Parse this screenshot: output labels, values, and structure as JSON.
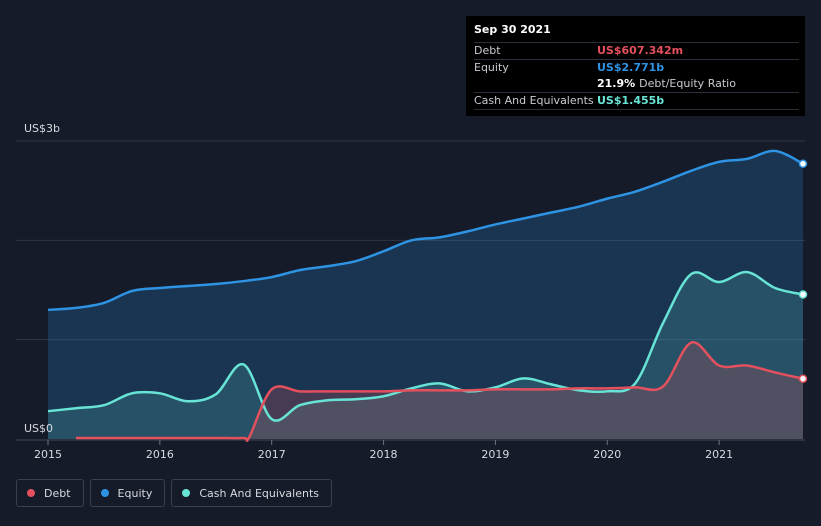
{
  "tooltip": {
    "date": "Sep 30 2021",
    "debt_label": "Debt",
    "debt_value": "US$607.342m",
    "equity_label": "Equity",
    "equity_value": "US$2.771b",
    "ratio_value": "21.9%",
    "ratio_label": "Debt/Equity Ratio",
    "cash_label": "Cash And Equivalents",
    "cash_value": "US$1.455b"
  },
  "legend": [
    {
      "label": "Debt",
      "color": "#e4505d"
    },
    {
      "label": "Equity",
      "color": "#2e93e3"
    },
    {
      "label": "Cash And Equivalents",
      "color": "#68e4d6"
    }
  ],
  "chart_data": {
    "type": "area",
    "y_top_label": "US$3b",
    "y_bottom_label": "US$0",
    "ylim": [
      0,
      3.0
    ],
    "xlim": [
      2015.0,
      2021.75
    ],
    "x_ticks": [
      2015,
      2016,
      2017,
      2018,
      2019,
      2020,
      2021
    ],
    "grid": true,
    "series": [
      {
        "name": "Debt",
        "color": "#e4505d",
        "x": [
          2015.25,
          2015.5,
          2015.75,
          2016.0,
          2016.25,
          2016.5,
          2016.75,
          2016.8,
          2017.0,
          2017.25,
          2017.5,
          2017.75,
          2018.0,
          2018.25,
          2018.5,
          2018.75,
          2019.0,
          2019.25,
          2019.5,
          2019.75,
          2020.0,
          2020.25,
          2020.5,
          2020.75,
          2021.0,
          2021.25,
          2021.5,
          2021.75
        ],
        "y": [
          0.01,
          0.01,
          0.01,
          0.01,
          0.01,
          0.01,
          0.01,
          0.02,
          0.5,
          0.48,
          0.48,
          0.48,
          0.48,
          0.49,
          0.49,
          0.49,
          0.5,
          0.5,
          0.5,
          0.51,
          0.51,
          0.52,
          0.53,
          0.97,
          0.74,
          0.74,
          0.67,
          0.607
        ]
      },
      {
        "name": "Equity",
        "color": "#2e93e3",
        "x": [
          2015.0,
          2015.25,
          2015.5,
          2015.75,
          2016.0,
          2016.25,
          2016.5,
          2016.75,
          2017.0,
          2017.25,
          2017.5,
          2017.75,
          2018.0,
          2018.25,
          2018.5,
          2018.75,
          2019.0,
          2019.25,
          2019.5,
          2019.75,
          2020.0,
          2020.25,
          2020.5,
          2020.75,
          2021.0,
          2021.25,
          2021.5,
          2021.75
        ],
        "y": [
          1.3,
          1.32,
          1.37,
          1.49,
          1.52,
          1.54,
          1.56,
          1.59,
          1.63,
          1.7,
          1.74,
          1.79,
          1.89,
          2.0,
          2.03,
          2.09,
          2.16,
          2.22,
          2.28,
          2.34,
          2.42,
          2.49,
          2.59,
          2.7,
          2.79,
          2.82,
          2.9,
          2.771
        ]
      },
      {
        "name": "Cash And Equivalents",
        "color": "#68e4d6",
        "x": [
          2015.0,
          2015.25,
          2015.5,
          2015.75,
          2016.0,
          2016.25,
          2016.5,
          2016.75,
          2017.0,
          2017.25,
          2017.5,
          2017.75,
          2018.0,
          2018.25,
          2018.5,
          2018.75,
          2019.0,
          2019.25,
          2019.5,
          2019.75,
          2020.0,
          2020.25,
          2020.5,
          2020.75,
          2021.0,
          2021.25,
          2021.5,
          2021.75
        ],
        "y": [
          0.28,
          0.31,
          0.34,
          0.46,
          0.46,
          0.38,
          0.45,
          0.75,
          0.2,
          0.34,
          0.39,
          0.4,
          0.43,
          0.51,
          0.56,
          0.48,
          0.52,
          0.61,
          0.55,
          0.49,
          0.48,
          0.56,
          1.17,
          1.66,
          1.58,
          1.68,
          1.52,
          1.455
        ]
      }
    ]
  }
}
